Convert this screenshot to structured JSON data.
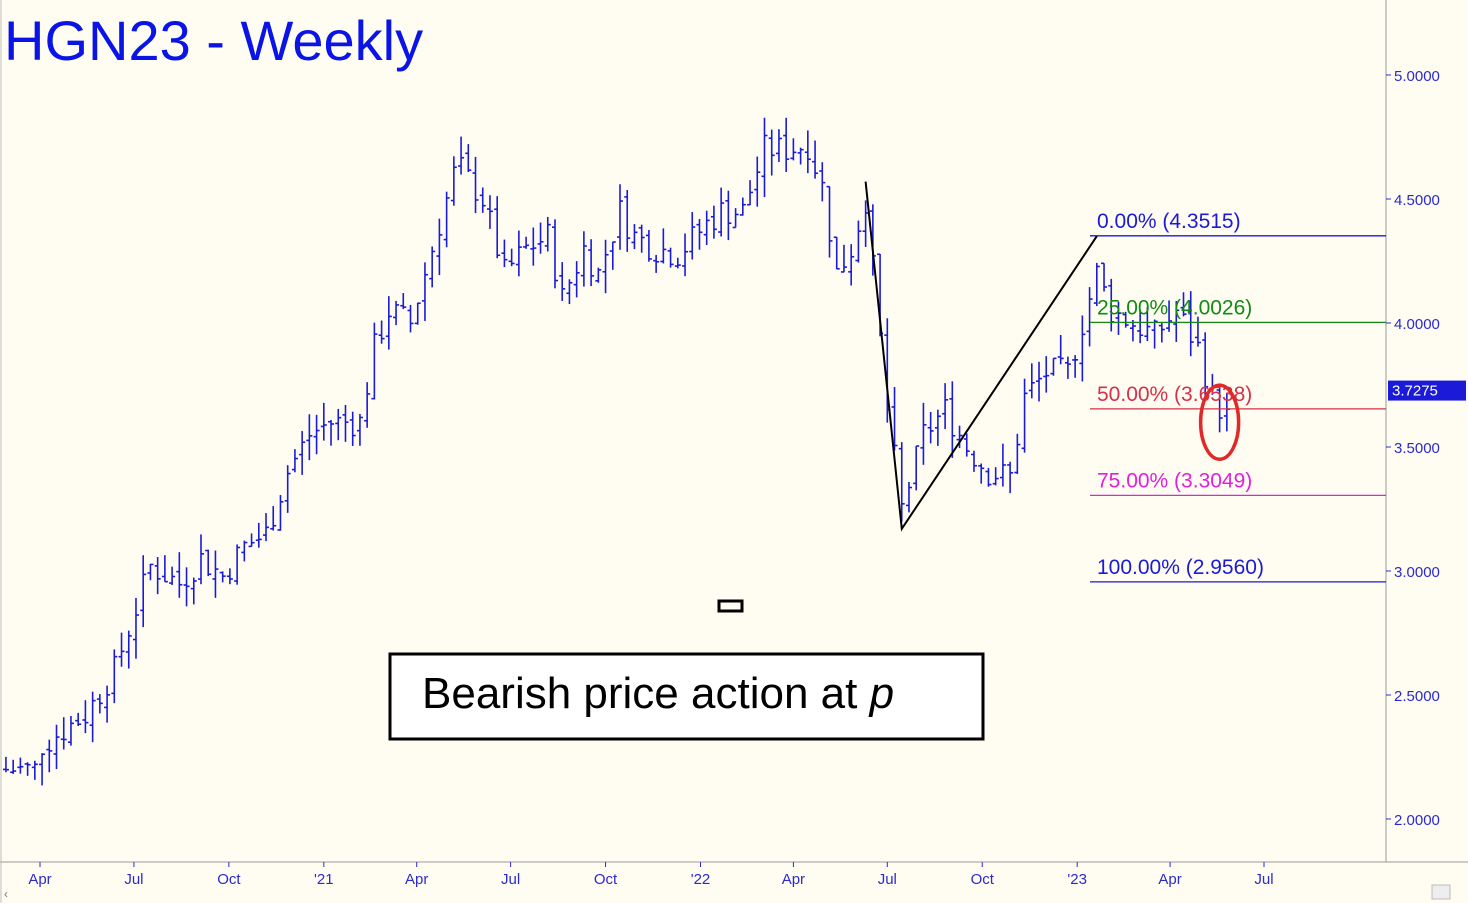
{
  "chart_data": {
    "type": "bar",
    "title": "HGN23 - Weekly",
    "ylim": [
      1.8,
      5.3
    ],
    "y_ticks": [
      "2.0000",
      "2.5000",
      "3.0000",
      "3.5000",
      "4.0000",
      "4.5000",
      "5.0000"
    ],
    "x_ticks": [
      {
        "label": "Apr",
        "date": "2020-04-01"
      },
      {
        "label": "Jul",
        "date": "2020-07-01"
      },
      {
        "label": "Oct",
        "date": "2020-10-01"
      },
      {
        "label": "'21",
        "date": "2021-01-01"
      },
      {
        "label": "Apr",
        "date": "2021-04-01"
      },
      {
        "label": "Jul",
        "date": "2021-07-01"
      },
      {
        "label": "Oct",
        "date": "2021-10-01"
      },
      {
        "label": "'22",
        "date": "2022-01-01"
      },
      {
        "label": "Apr",
        "date": "2022-04-01"
      },
      {
        "label": "Jul",
        "date": "2022-07-01"
      },
      {
        "label": "Oct",
        "date": "2022-10-01"
      },
      {
        "label": "'23",
        "date": "2023-01-01"
      },
      {
        "label": "Apr",
        "date": "2023-04-01"
      },
      {
        "label": "Jul",
        "date": "2023-07-01"
      }
    ],
    "last_price": "3.7275",
    "series_color": "#1a1ad8",
    "fib_levels": [
      {
        "label": "0.00% (4.3515)",
        "value": 4.3515,
        "color": "#1a1ad8"
      },
      {
        "label": "25.00% (4.0026)",
        "value": 4.0026,
        "color": "#138a13"
      },
      {
        "label": "50.00% (3.6538)",
        "value": 3.6538,
        "color": "#d6304a"
      },
      {
        "label": "75.00% (3.3049)",
        "value": 3.3049,
        "color": "#e020e0"
      },
      {
        "label": "100.00% (2.9560)",
        "value": 2.956,
        "color": "#1a1ad8"
      }
    ],
    "swing_lines": [
      {
        "date": "2022-06-10",
        "value": 4.57
      },
      {
        "date": "2022-07-15",
        "value": 3.17
      },
      {
        "date": "2023-01-20",
        "value": 4.35
      }
    ],
    "anchors": [
      [
        "2020-03-27",
        2.2
      ],
      [
        "2020-04-03",
        2.3
      ],
      [
        "2020-05-15",
        2.42
      ],
      [
        "2020-06-12",
        2.6
      ],
      [
        "2020-07-03",
        2.85
      ],
      [
        "2020-07-17",
        3.02
      ],
      [
        "2020-08-14",
        2.95
      ],
      [
        "2020-09-04",
        3.05
      ],
      [
        "2020-09-25",
        2.98
      ],
      [
        "2020-10-16",
        3.1
      ],
      [
        "2020-11-06",
        3.15
      ],
      [
        "2020-11-27",
        3.4
      ],
      [
        "2020-12-18",
        3.55
      ],
      [
        "2021-01-08",
        3.6
      ],
      [
        "2021-02-05",
        3.6
      ],
      [
        "2021-02-19",
        3.9
      ],
      [
        "2021-03-05",
        4.05
      ],
      [
        "2021-03-26",
        4.0
      ],
      [
        "2021-04-16",
        4.3
      ],
      [
        "2021-05-07",
        4.6
      ],
      [
        "2021-05-14",
        4.62
      ],
      [
        "2021-06-04",
        4.5
      ],
      [
        "2021-06-25",
        4.2
      ],
      [
        "2021-07-16",
        4.3
      ],
      [
        "2021-08-06",
        4.35
      ],
      [
        "2021-08-20",
        4.1
      ],
      [
        "2021-09-10",
        4.3
      ],
      [
        "2021-09-24",
        4.2
      ],
      [
        "2021-10-15",
        4.45
      ],
      [
        "2021-10-29",
        4.35
      ],
      [
        "2021-11-19",
        4.3
      ],
      [
        "2021-12-10",
        4.28
      ],
      [
        "2022-01-07",
        4.4
      ],
      [
        "2022-01-21",
        4.45
      ],
      [
        "2022-02-11",
        4.45
      ],
      [
        "2022-03-04",
        4.7
      ],
      [
        "2022-03-25",
        4.7
      ],
      [
        "2022-04-15",
        4.72
      ],
      [
        "2022-04-29",
        4.55
      ],
      [
        "2022-05-13",
        4.2
      ],
      [
        "2022-05-27",
        4.3
      ],
      [
        "2022-06-10",
        4.5
      ],
      [
        "2022-07-01",
        3.65
      ],
      [
        "2022-07-15",
        3.25
      ],
      [
        "2022-08-05",
        3.55
      ],
      [
        "2022-08-26",
        3.65
      ],
      [
        "2022-09-16",
        3.5
      ],
      [
        "2022-10-07",
        3.4
      ],
      [
        "2022-10-28",
        3.38
      ],
      [
        "2022-11-11",
        3.7
      ],
      [
        "2022-12-02",
        3.8
      ],
      [
        "2022-12-23",
        3.8
      ],
      [
        "2023-01-20",
        4.2
      ],
      [
        "2023-02-03",
        4.05
      ],
      [
        "2023-02-24",
        4.0
      ],
      [
        "2023-03-17",
        3.95
      ],
      [
        "2023-04-07",
        4.05
      ],
      [
        "2023-04-28",
        3.9
      ],
      [
        "2023-05-12",
        3.7
      ],
      [
        "2023-05-26",
        3.62
      ]
    ]
  },
  "annotation": {
    "text": "Bearish price action at ",
    "text_italic": "p"
  }
}
